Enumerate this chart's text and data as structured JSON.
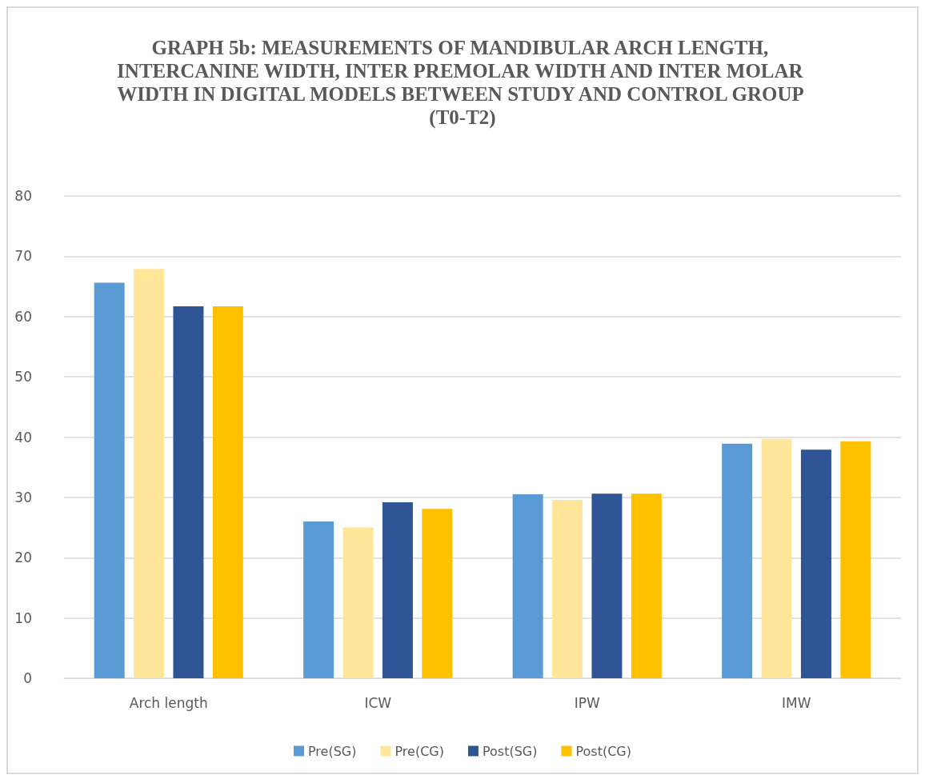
{
  "chart_data": {
    "type": "bar",
    "title": "GRAPH 5b: MEASUREMENTS OF MANDIBULAR ARCH LENGTH, INTERCANINE WIDTH, INTER PREMOLAR WIDTH AND INTER MOLAR WIDTH IN DIGITAL MODELS BETWEEN STUDY AND CONTROL GROUP (T0-T2)",
    "categories": [
      "Arch length",
      "ICW",
      "IPW",
      "IMW"
    ],
    "series": [
      {
        "name": "Pre(SG)",
        "color": "#5b9bd5",
        "values": [
          65.6,
          26.0,
          30.5,
          38.9
        ]
      },
      {
        "name": "Pre(CG)",
        "color": "#ffe699",
        "values": [
          67.9,
          25.0,
          29.6,
          39.7
        ]
      },
      {
        "name": "Post(SG)",
        "color": "#2f5597",
        "values": [
          61.7,
          29.2,
          30.6,
          37.9
        ]
      },
      {
        "name": "Post(CG)",
        "color": "#ffc000",
        "values": [
          61.7,
          28.1,
          30.6,
          39.3
        ]
      }
    ],
    "ylim": [
      0,
      80
    ],
    "yticks": [
      0,
      10,
      20,
      30,
      40,
      50,
      60,
      70,
      80
    ],
    "grid": "y",
    "legend": "bottom"
  }
}
